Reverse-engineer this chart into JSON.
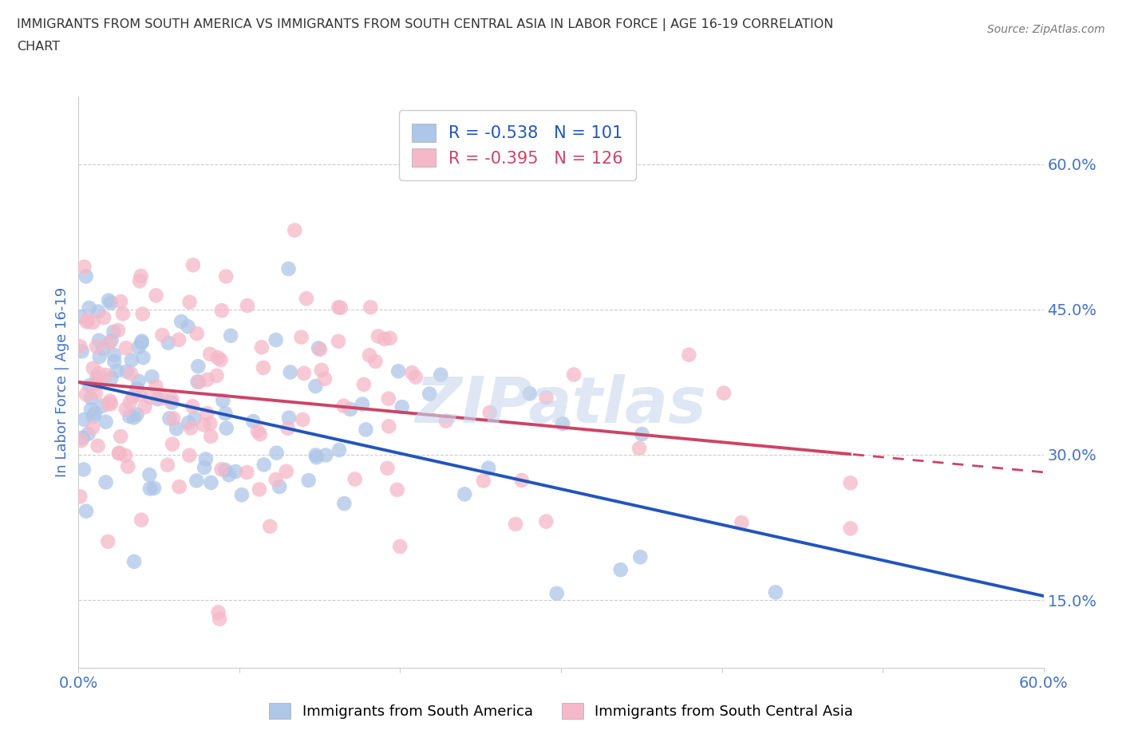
{
  "title_line1": "IMMIGRANTS FROM SOUTH AMERICA VS IMMIGRANTS FROM SOUTH CENTRAL ASIA IN LABOR FORCE | AGE 16-19 CORRELATION",
  "title_line2": "CHART",
  "source": "Source: ZipAtlas.com",
  "ylabel": "In Labor Force | Age 16-19",
  "xlim": [
    0.0,
    0.6
  ],
  "ylim": [
    0.08,
    0.67
  ],
  "yticks": [
    0.15,
    0.3,
    0.45,
    0.6
  ],
  "ytick_labels": [
    "15.0%",
    "30.0%",
    "45.0%",
    "60.0%"
  ],
  "xticks": [
    0.0,
    0.1,
    0.2,
    0.3,
    0.4,
    0.5,
    0.6
  ],
  "xtick_labels": [
    "0.0%",
    "",
    "",
    "",
    "",
    "",
    "60.0%"
  ],
  "r_blue": -0.538,
  "n_blue": 101,
  "r_pink": -0.395,
  "n_pink": 126,
  "blue_scatter_color": "#aec6e8",
  "pink_scatter_color": "#f5b8c8",
  "blue_line_color": "#2255bb",
  "pink_line_color": "#cc4466",
  "legend_label_blue": "Immigrants from South America",
  "legend_label_pink": "Immigrants from South Central Asia",
  "watermark": "ZIPatlas",
  "watermark_color": "#c8d8ec",
  "background_color": "#ffffff",
  "grid_color": "#cccccc",
  "title_color": "#333333",
  "axis_label_color": "#4472c4",
  "tick_label_color": "#4472c4",
  "blue_line_intercept": 0.375,
  "blue_line_slope": -0.368,
  "pink_line_intercept": 0.375,
  "pink_line_slope": -0.155
}
